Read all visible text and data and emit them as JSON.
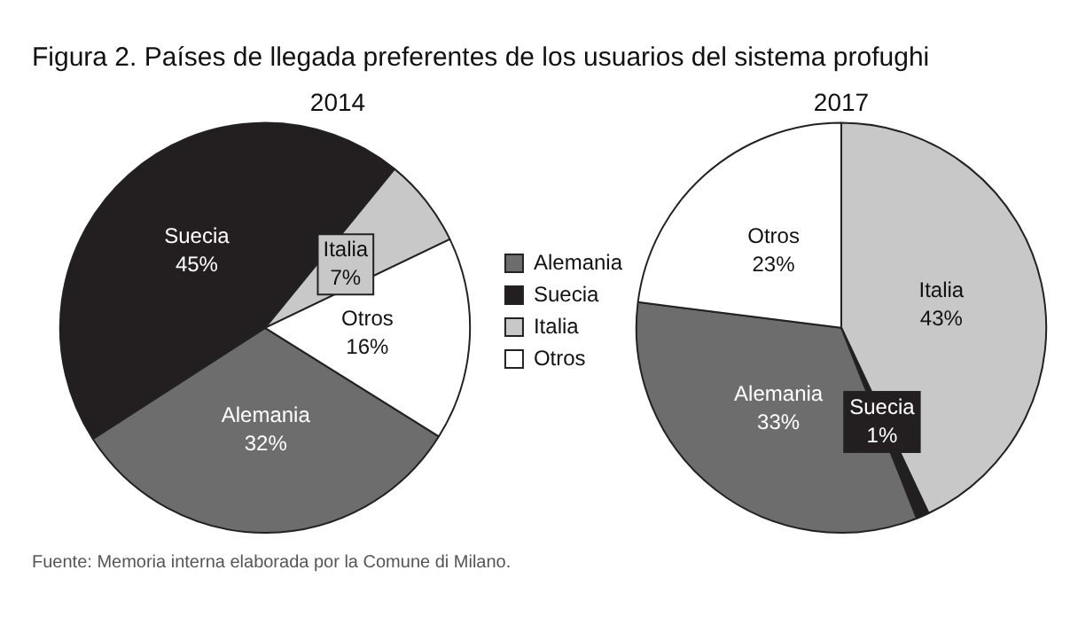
{
  "chart_data": [
    {
      "type": "pie",
      "title": "Figura 2. Países de llegada preferentes de los usuarios del sistema profughi",
      "subtitle": "2014",
      "categories": [
        "Alemania",
        "Suecia",
        "Italia",
        "Otros"
      ],
      "values": [
        32,
        45,
        7,
        16
      ],
      "colors": [
        "#6d6d6d",
        "#231f20",
        "#c8c8c8",
        "#ffffff"
      ],
      "value_labels": [
        "32%",
        "45%",
        "7%",
        "16%"
      ],
      "legend": "right",
      "annotations": [
        "Fuente: Memoria interna elaborada por la Comune di Milano."
      ]
    },
    {
      "type": "pie",
      "title": "2017",
      "categories": [
        "Italia",
        "Suecia",
        "Alemania",
        "Otros"
      ],
      "values": [
        43,
        1,
        33,
        23
      ],
      "colors": [
        "#c8c8c8",
        "#231f20",
        "#6d6d6d",
        "#ffffff"
      ],
      "value_labels": [
        "43%",
        "1%",
        "33%",
        "23%"
      ],
      "legend": false
    }
  ]
}
